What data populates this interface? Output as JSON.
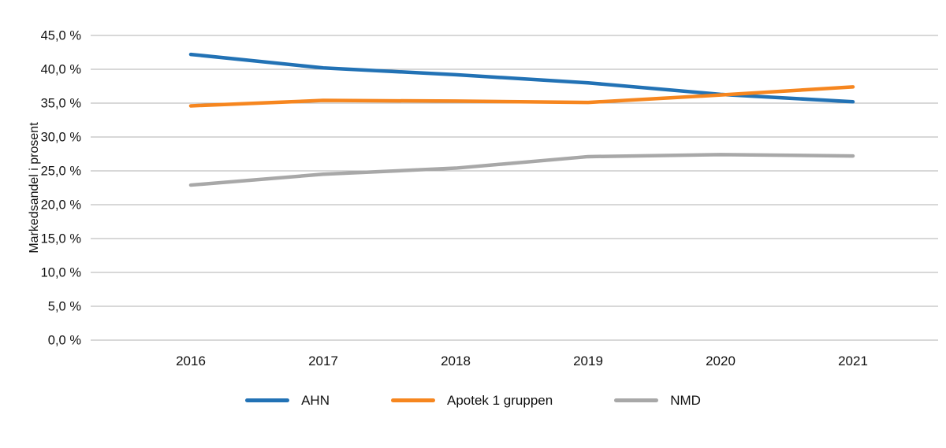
{
  "chart_data": {
    "type": "line",
    "x": [
      "2016",
      "2017",
      "2018",
      "2019",
      "2020",
      "2021"
    ],
    "series": [
      {
        "name": "AHN",
        "color": "#2272b5",
        "values": [
          42.2,
          40.2,
          39.2,
          38.0,
          36.3,
          35.2
        ]
      },
      {
        "name": "Apotek 1 gruppen",
        "color": "#f6861f",
        "values": [
          34.6,
          35.4,
          35.3,
          35.1,
          36.2,
          37.4
        ]
      },
      {
        "name": "NMD",
        "color": "#a8a8a8",
        "values": [
          22.9,
          24.5,
          25.4,
          27.1,
          27.4,
          27.2
        ]
      }
    ],
    "title": "",
    "xlabel": "",
    "ylabel": "Markedsandel i prosent",
    "ylim": [
      0,
      45
    ],
    "ytick_step": 5,
    "ytick_labels": [
      "0,0 %",
      "5,0 %",
      "10,0 %",
      "15,0 %",
      "20,0 %",
      "25,0 %",
      "30,0 %",
      "35,0 %",
      "40,0 %",
      "45,0 %"
    ],
    "grid": true,
    "gridline_color": "#b0b0b0",
    "legend_position": "bottom"
  }
}
